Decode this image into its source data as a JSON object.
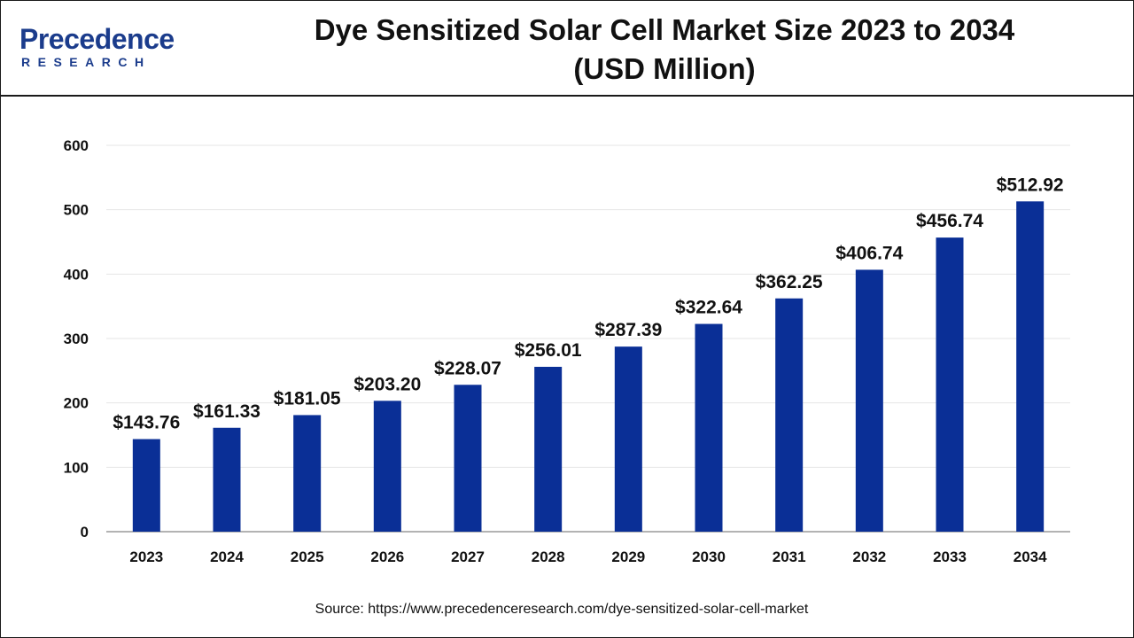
{
  "brand": {
    "name_top": "Precedence",
    "name_bottom": "RESEARCH",
    "color": "#1b3c8c"
  },
  "header": {
    "title_line1": "Dye Sensitized Solar Cell Market Size 2023 to 2034",
    "title_line2": "(USD Million)"
  },
  "source": "Source: https://www.precedenceresearch.com/dye-sensitized-solar-cell-market",
  "chart_data": {
    "type": "bar",
    "title": "Dye Sensitized Solar Cell Market Size 2023 to 2034 (USD Million)",
    "categories": [
      "2023",
      "2024",
      "2025",
      "2026",
      "2027",
      "2028",
      "2029",
      "2030",
      "2031",
      "2032",
      "2033",
      "2034"
    ],
    "values": [
      143.76,
      161.33,
      181.05,
      203.2,
      228.07,
      256.01,
      287.39,
      322.64,
      362.25,
      406.74,
      456.74,
      512.92
    ],
    "data_labels": [
      "$143.76",
      "$161.33",
      "$181.05",
      "$203.20",
      "$228.07",
      "$256.01",
      "$287.39",
      "$322.64",
      "$362.25",
      "$406.74",
      "$456.74",
      "$512.92"
    ],
    "yticks": [
      0,
      100,
      200,
      300,
      400,
      500,
      600
    ],
    "ylim": [
      0,
      600
    ],
    "xlabel": "",
    "ylabel": "",
    "grid": true,
    "bar_color": "#0a2f96",
    "grid_color": "#e6e6e6"
  }
}
